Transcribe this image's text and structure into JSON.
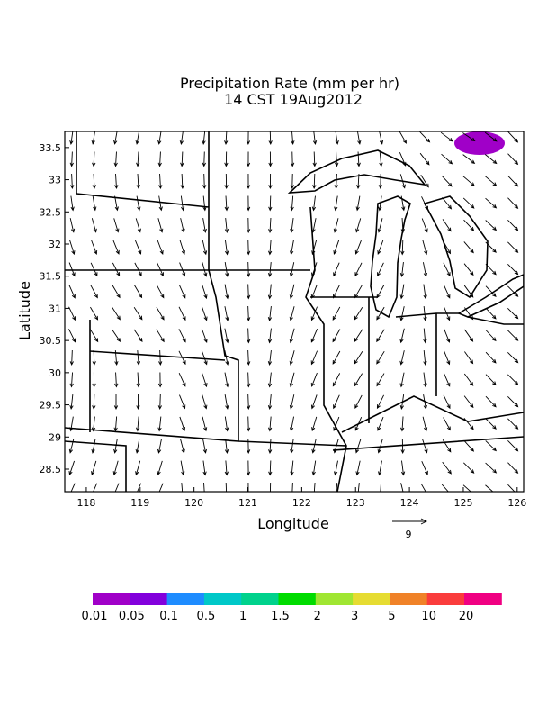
{
  "chart_data": {
    "type": "vector-map",
    "title": "Precipitation Rate (mm per hr)",
    "subtitle": "14 CST 19Aug2012",
    "x_label": "Longitude",
    "y_label": "Latitude",
    "xlim": [
      117.6,
      126.12
    ],
    "ylim": [
      28.15,
      33.75
    ],
    "xticks": [
      118,
      119,
      120,
      121,
      122,
      123,
      124,
      125,
      126
    ],
    "yticks": [
      28.5,
      29,
      29.5,
      30,
      30.5,
      31,
      31.5,
      32,
      32.5,
      33,
      33.5
    ],
    "vector_scale": 9,
    "levels": [
      0.01,
      0.05,
      0.1,
      0.5,
      1,
      1.5,
      2,
      3,
      5,
      10,
      20
    ],
    "colors": [
      "#a000c8",
      "#8200dc",
      "#1e8cff",
      "#00c8c8",
      "#00d28c",
      "#00dc00",
      "#a0e632",
      "#e6dc32",
      "#f08228",
      "#fa3c3c",
      "#f00082"
    ]
  }
}
